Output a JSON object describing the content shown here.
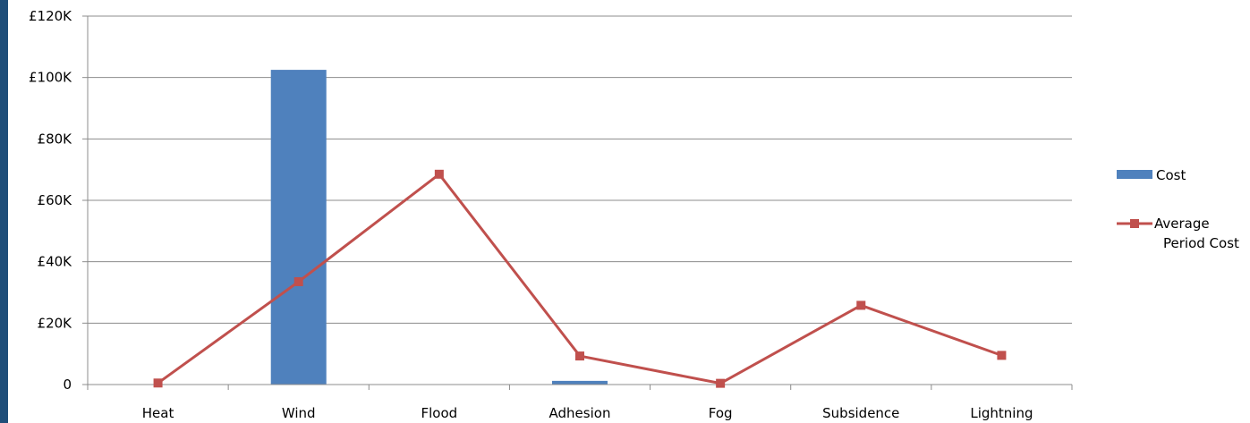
{
  "chart_data": {
    "type": "bar",
    "categories": [
      "Heat",
      "Wind",
      "Flood",
      "Adhesion",
      "Fog",
      "Subsidence",
      "Lightning"
    ],
    "ylim": [
      0,
      120000
    ],
    "y_ticks": [
      {
        "value": 0,
        "label": "0"
      },
      {
        "value": 20000,
        "label": "£20K"
      },
      {
        "value": 40000,
        "label": "£40K"
      },
      {
        "value": 60000,
        "label": "£60K"
      },
      {
        "value": 80000,
        "label": "£80K"
      },
      {
        "value": 100000,
        "label": "£100K"
      },
      {
        "value": 120000,
        "label": "£120K"
      }
    ],
    "grid": true,
    "legend_position": "right",
    "series": [
      {
        "name": "Cost",
        "type": "bar",
        "color": "#4f81bd",
        "values": [
          0,
          102500,
          0,
          1200,
          0,
          0,
          0
        ]
      },
      {
        "name": "Average Period Cost",
        "legend_lines": [
          "Average",
          "Period Cost"
        ],
        "type": "line",
        "color": "#c0504d",
        "values": [
          500,
          33500,
          68500,
          9300,
          400,
          25800,
          9500
        ]
      }
    ]
  }
}
